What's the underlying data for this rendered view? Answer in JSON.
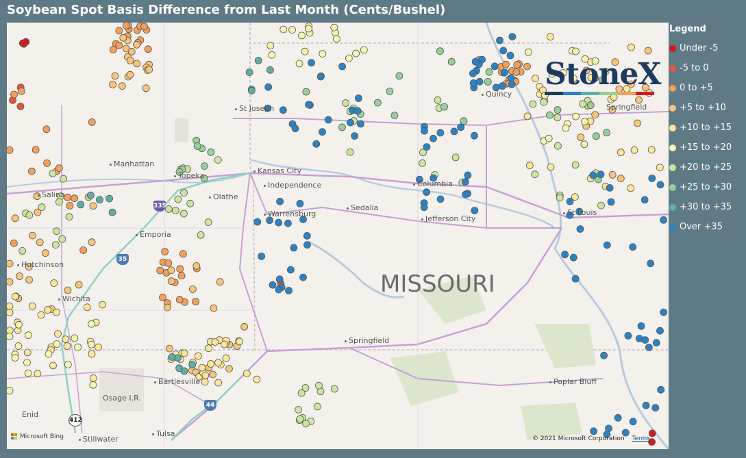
{
  "title": "Soybean Spot Basis Difference from Last Month (Cents/Bushel)",
  "legend": {
    "title": "Legend",
    "items": [
      {
        "label": "Under -5",
        "color": "#d7191c"
      },
      {
        "label": "-5 to 0",
        "color": "#e8553a"
      },
      {
        "label": "0 to +5",
        "color": "#f4a05a"
      },
      {
        "label": "+5 to +10",
        "color": "#f7c47a"
      },
      {
        "label": "+10 to +15",
        "color": "#fde69a"
      },
      {
        "label": "+15 to +20",
        "color": "#f4f5b0"
      },
      {
        "label": "+20 to +25",
        "color": "#cce6a0"
      },
      {
        "label": "+25 to +30",
        "color": "#97cf9a"
      },
      {
        "label": "+30 to +35",
        "color": "#5fada6"
      },
      {
        "label": "Over +35",
        "color": "#2b83c4"
      }
    ]
  },
  "map": {
    "state_label": "MISSOURI",
    "cities": [
      {
        "name": "St Joseph"
      },
      {
        "name": "Manhattan"
      },
      {
        "name": "Topeka"
      },
      {
        "name": "Kansas City"
      },
      {
        "name": "Independence"
      },
      {
        "name": "Olathe"
      },
      {
        "name": "Columbia"
      },
      {
        "name": "Sedalia"
      },
      {
        "name": "Warrensburg"
      },
      {
        "name": "Jefferson City"
      },
      {
        "name": "St Louis"
      },
      {
        "name": "Salina"
      },
      {
        "name": "Emporia"
      },
      {
        "name": "Hutchinson"
      },
      {
        "name": "Wichita"
      },
      {
        "name": "Springfield"
      },
      {
        "name": "Springfield"
      },
      {
        "name": "Bartlesville"
      },
      {
        "name": "Osage I.R."
      },
      {
        "name": "Poplar Bluff"
      },
      {
        "name": "Stillwater"
      },
      {
        "name": "Tulsa"
      },
      {
        "name": "Enid"
      },
      {
        "name": "Quincy"
      }
    ],
    "highways": [
      "335",
      "35",
      "44",
      "412"
    ],
    "attribution": "© 2021 Microsoft Corporation",
    "terms": "Terms",
    "bing": "Microsoft Bing"
  },
  "logo": {
    "text": "StoneX",
    "bar_colors": [
      "#1f3a5f",
      "#2b83c4",
      "#5fada6",
      "#97cf9a",
      "#f4a05a",
      "#d7191c"
    ]
  },
  "points_by_category": [
    {
      "category": "Under -5",
      "count": 5
    },
    {
      "category": "-5 to 0",
      "count": 4
    },
    {
      "category": "0 to +5",
      "count": 60
    },
    {
      "category": "+5 to +10",
      "count": 70
    },
    {
      "category": "+10 to +15",
      "count": 80
    },
    {
      "category": "+15 to +20",
      "count": 50
    },
    {
      "category": "+20 to +25",
      "count": 60
    },
    {
      "category": "+25 to +30",
      "count": 30
    },
    {
      "category": "+30 to +35",
      "count": 15
    },
    {
      "category": "Over +35",
      "count": 110
    }
  ]
}
